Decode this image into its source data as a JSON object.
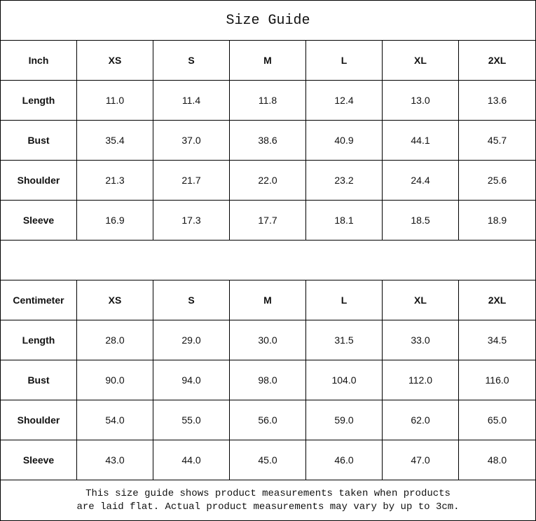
{
  "title": "Size Guide",
  "sizes": [
    "XS",
    "S",
    "M",
    "L",
    "XL",
    "2XL"
  ],
  "inch": {
    "header": "Inch",
    "rows": [
      {
        "label": "Length",
        "values": [
          "11.0",
          "11.4",
          "11.8",
          "12.4",
          "13.0",
          "13.6"
        ]
      },
      {
        "label": "Bust",
        "values": [
          "35.4",
          "37.0",
          "38.6",
          "40.9",
          "44.1",
          "45.7"
        ]
      },
      {
        "label": "Shoulder",
        "values": [
          "21.3",
          "21.7",
          "22.0",
          "23.2",
          "24.4",
          "25.6"
        ]
      },
      {
        "label": "Sleeve",
        "values": [
          "16.9",
          "17.3",
          "17.7",
          "18.1",
          "18.5",
          "18.9"
        ]
      }
    ]
  },
  "centimeter": {
    "header": "Centimeter",
    "rows": [
      {
        "label": "Length",
        "values": [
          "28.0",
          "29.0",
          "30.0",
          "31.5",
          "33.0",
          "34.5"
        ]
      },
      {
        "label": "Bust",
        "values": [
          "90.0",
          "94.0",
          "98.0",
          "104.0",
          "112.0",
          "116.0"
        ]
      },
      {
        "label": "Shoulder",
        "values": [
          "54.0",
          "55.0",
          "56.0",
          "59.0",
          "62.0",
          "65.0"
        ]
      },
      {
        "label": "Sleeve",
        "values": [
          "43.0",
          "44.0",
          "45.0",
          "46.0",
          "47.0",
          "48.0"
        ]
      }
    ]
  },
  "note": {
    "line1": "This size guide shows product measurements taken when products",
    "line2": "are laid flat. Actual product measurements may vary by up to 3cm."
  }
}
